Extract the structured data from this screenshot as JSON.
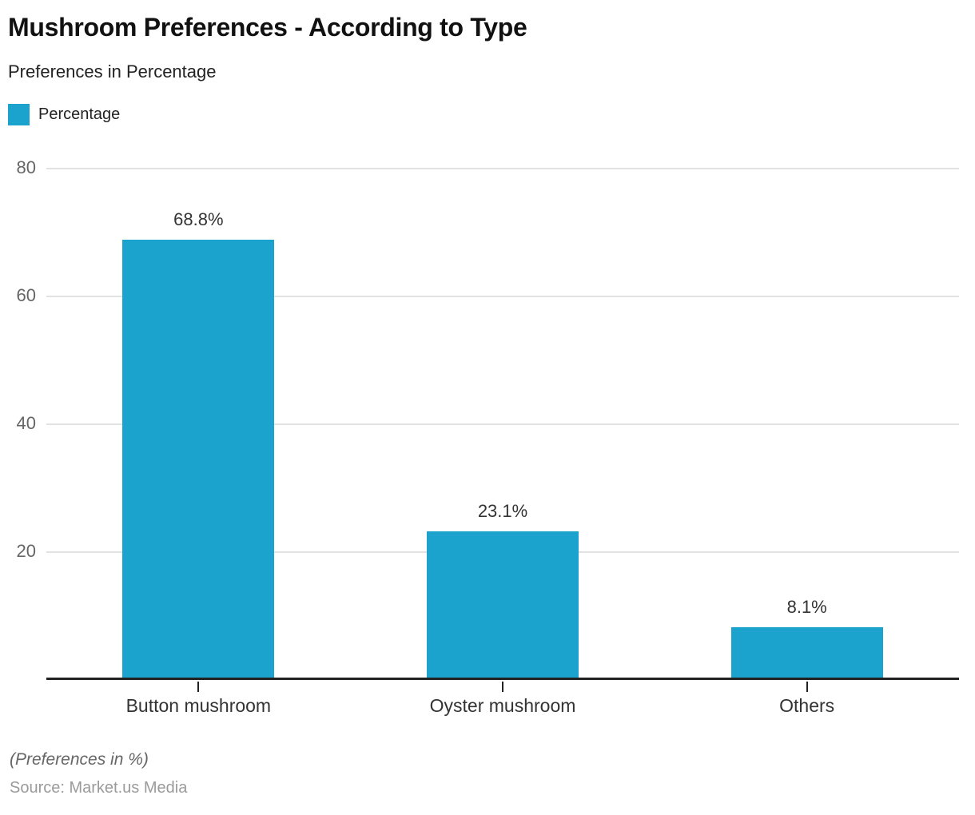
{
  "header": {
    "title": "Mushroom Preferences - According to Type",
    "subtitle": "Preferences in Percentage"
  },
  "legend": {
    "label": "Percentage",
    "swatch_color": "#1BA3CE"
  },
  "chart_data": {
    "type": "bar",
    "title": "Mushroom Preferences - According to Type",
    "subtitle": "Preferences in Percentage",
    "series_name": "Percentage",
    "categories": [
      "Button mushroom",
      "Oyster mushroom",
      "Others"
    ],
    "values": [
      68.8,
      23.1,
      8.1
    ],
    "value_labels": [
      "68.8%",
      "23.1%",
      "8.1%"
    ],
    "xlabel": "",
    "ylabel": "",
    "ylim": [
      0,
      80
    ],
    "yticks": [
      20,
      40,
      60,
      80
    ],
    "grid": true,
    "legend_position": "top-left",
    "bar_color": "#1BA3CE"
  },
  "footer": {
    "note": "(Preferences in %)",
    "source": "Source: Market.us Media"
  },
  "colors": {
    "bar": "#1BA3CE",
    "grid": "#e2e2e2",
    "axis": "#222222",
    "ytick_label": "#666666",
    "value_label": "#333333",
    "category_label": "#333333",
    "note": "#666666",
    "source": "#9a9a9a"
  }
}
